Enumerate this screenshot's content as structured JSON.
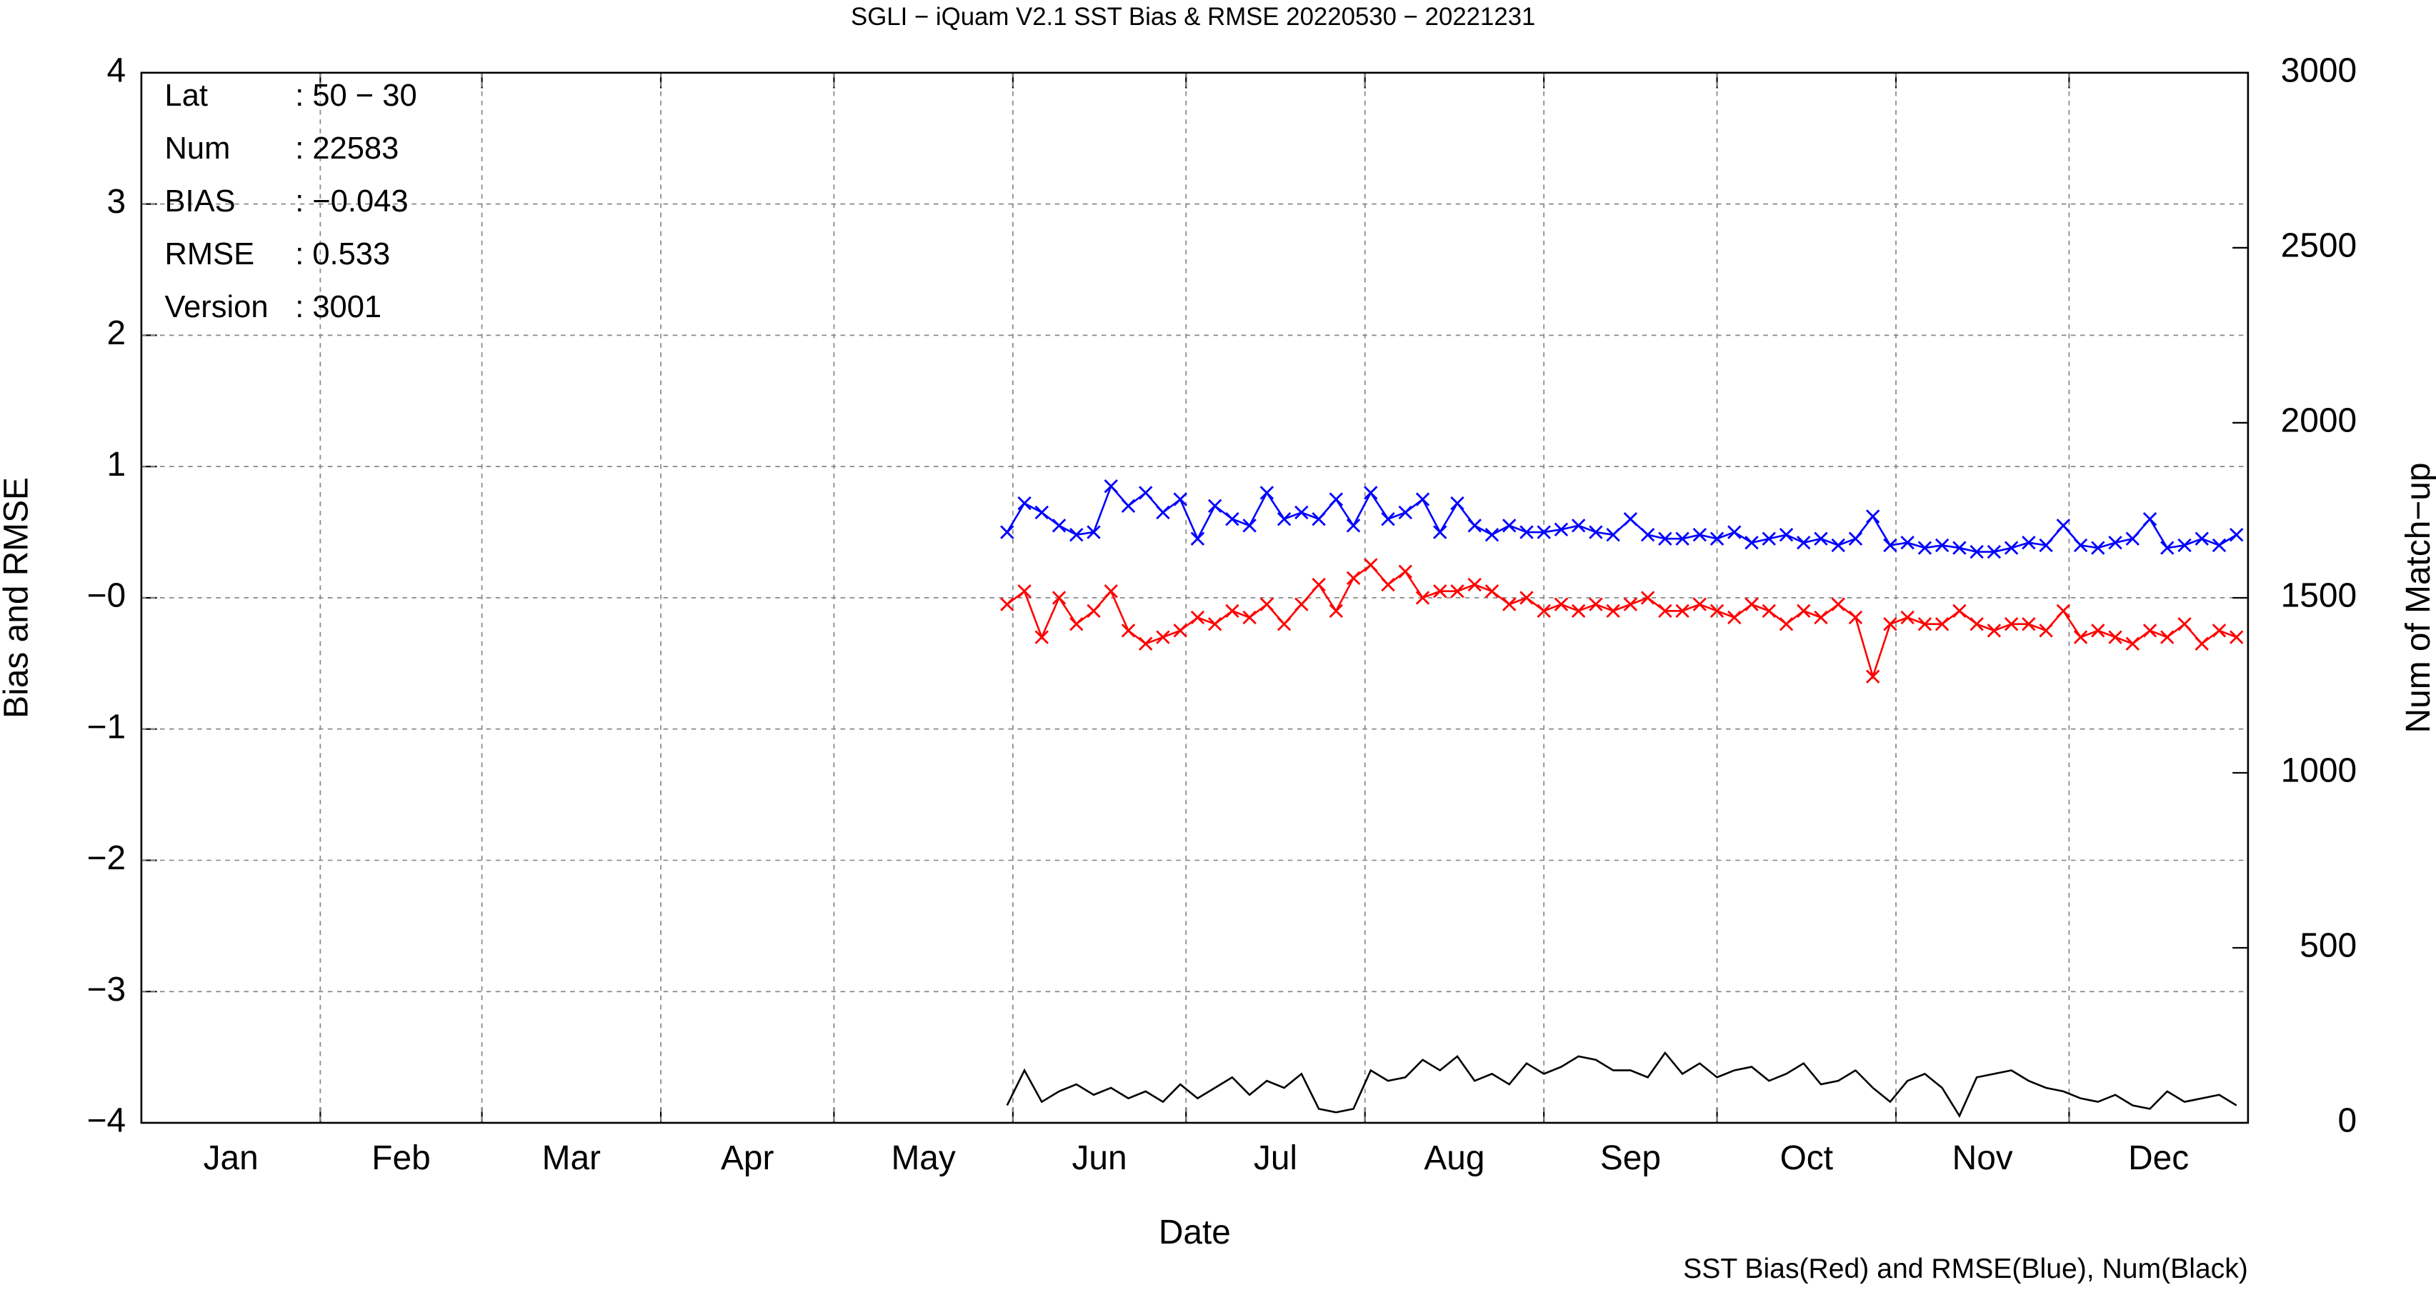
{
  "chart_data": {
    "type": "line",
    "title": "SGLI − iQuam V2.1 SST Bias & RMSE 20220530 − 20221231",
    "xlabel": "Date",
    "ylabel": "Bias and RMSE",
    "y2label": "Num of Match−up",
    "footer": "SST Bias(Red) and RMSE(Blue), Num(Black)",
    "info": [
      [
        "Lat",
        ": 50 − 30"
      ],
      [
        "Num",
        ": 22583"
      ],
      [
        "BIAS",
        ": −0.043"
      ],
      [
        "RMSE",
        ": 0.533"
      ],
      [
        "Version",
        ": 3001"
      ]
    ],
    "xlim": [
      0,
      365
    ],
    "xticks": [
      {
        "value": 15.5,
        "label": "Jan"
      },
      {
        "value": 45,
        "label": "Feb"
      },
      {
        "value": 74.5,
        "label": "Mar"
      },
      {
        "value": 105,
        "label": "Apr"
      },
      {
        "value": 135.5,
        "label": "May"
      },
      {
        "value": 166,
        "label": "Jun"
      },
      {
        "value": 196.5,
        "label": "Jul"
      },
      {
        "value": 227.5,
        "label": "Aug"
      },
      {
        "value": 258,
        "label": "Sep"
      },
      {
        "value": 288.5,
        "label": "Oct"
      },
      {
        "value": 319,
        "label": "Nov"
      },
      {
        "value": 349.5,
        "label": "Dec"
      }
    ],
    "xgrid": [
      31,
      59,
      90,
      120,
      151,
      181,
      212,
      243,
      273,
      304,
      334
    ],
    "ylim": [
      -4,
      4
    ],
    "yticks": [
      {
        "value": -4,
        "label": "−4"
      },
      {
        "value": -3,
        "label": "−3"
      },
      {
        "value": -2,
        "label": "−2"
      },
      {
        "value": -1,
        "label": "−1"
      },
      {
        "value": 0,
        "label": "−0"
      },
      1,
      2,
      3,
      4
    ],
    "y2lim": [
      0,
      3000
    ],
    "y2ticks": [
      0,
      500,
      1000,
      1500,
      2000,
      2500,
      3000
    ],
    "grid": true,
    "x": [
      150,
      153,
      156,
      159,
      162,
      165,
      168,
      171,
      174,
      177,
      180,
      183,
      186,
      189,
      192,
      195,
      198,
      201,
      204,
      207,
      210,
      213,
      216,
      219,
      222,
      225,
      228,
      231,
      234,
      237,
      240,
      243,
      246,
      249,
      252,
      255,
      258,
      261,
      264,
      267,
      270,
      273,
      276,
      279,
      282,
      285,
      288,
      291,
      294,
      297,
      300,
      303,
      306,
      309,
      312,
      315,
      318,
      321,
      324,
      327,
      330,
      333,
      336,
      339,
      342,
      345,
      348,
      351,
      354,
      357,
      360,
      363
    ],
    "series": [
      {
        "color": "#0000ff",
        "marker": "x",
        "values": [
          0.5,
          0.72,
          0.65,
          0.55,
          0.48,
          0.5,
          0.85,
          0.7,
          0.8,
          0.65,
          0.75,
          0.45,
          0.7,
          0.6,
          0.55,
          0.8,
          0.6,
          0.65,
          0.6,
          0.75,
          0.55,
          0.8,
          0.6,
          0.65,
          0.75,
          0.5,
          0.72,
          0.55,
          0.48,
          0.55,
          0.5,
          0.5,
          0.52,
          0.55,
          0.5,
          0.48,
          0.6,
          0.48,
          0.45,
          0.45,
          0.48,
          0.45,
          0.5,
          0.42,
          0.45,
          0.48,
          0.42,
          0.45,
          0.4,
          0.45,
          0.62,
          0.4,
          0.42,
          0.38,
          0.4,
          0.38,
          0.35,
          0.35,
          0.38,
          0.42,
          0.4,
          0.55,
          0.4,
          0.38,
          0.42,
          0.45,
          0.6,
          0.38,
          0.4,
          0.45,
          0.4,
          0.48
        ]
      },
      {
        "color": "#ff0000",
        "marker": "x",
        "values": [
          -0.05,
          0.05,
          -0.3,
          0.0,
          -0.2,
          -0.1,
          0.05,
          -0.25,
          -0.35,
          -0.3,
          -0.25,
          -0.15,
          -0.2,
          -0.1,
          -0.15,
          -0.05,
          -0.2,
          -0.05,
          0.1,
          -0.1,
          0.15,
          0.25,
          0.1,
          0.2,
          0.0,
          0.05,
          0.05,
          0.1,
          0.05,
          -0.05,
          0.0,
          -0.1,
          -0.05,
          -0.1,
          -0.05,
          -0.1,
          -0.05,
          0.0,
          -0.1,
          -0.1,
          -0.05,
          -0.1,
          -0.15,
          -0.05,
          -0.1,
          -0.2,
          -0.1,
          -0.15,
          -0.05,
          -0.15,
          -0.6,
          -0.2,
          -0.15,
          -0.2,
          -0.2,
          -0.1,
          -0.2,
          -0.25,
          -0.2,
          -0.2,
          -0.25,
          -0.1,
          -0.3,
          -0.25,
          -0.3,
          -0.35,
          -0.25,
          -0.3,
          -0.2,
          -0.35,
          -0.25,
          -0.3
        ]
      },
      {
        "color": "#000000",
        "axis": "y2",
        "values": [
          50,
          150,
          60,
          90,
          110,
          80,
          100,
          70,
          90,
          60,
          110,
          70,
          100,
          130,
          80,
          120,
          100,
          140,
          40,
          30,
          40,
          150,
          120,
          130,
          180,
          150,
          190,
          120,
          140,
          110,
          170,
          140,
          160,
          190,
          180,
          150,
          150,
          130,
          200,
          140,
          170,
          130,
          150,
          160,
          120,
          140,
          170,
          110,
          120,
          150,
          100,
          60,
          120,
          140,
          100,
          20,
          130,
          140,
          150,
          120,
          100,
          90,
          70,
          60,
          80,
          50,
          40,
          90,
          60,
          70,
          80,
          50
        ]
      }
    ]
  }
}
